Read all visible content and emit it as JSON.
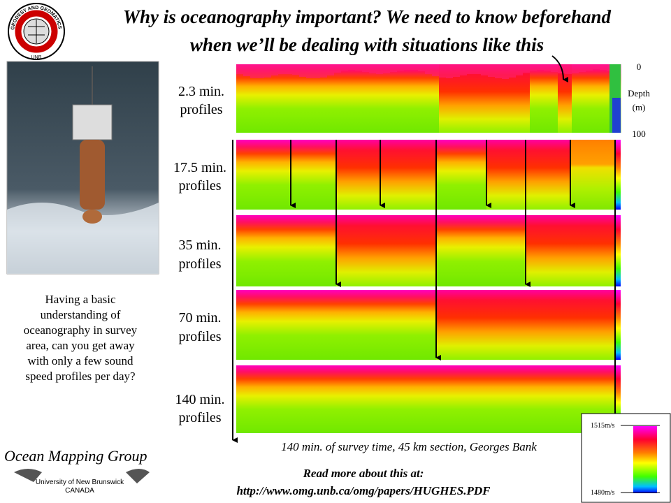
{
  "title": [
    "Why is oceanography important?  We need to know beforehand",
    "when we’ll be dealing with situations like this"
  ],
  "logo": {
    "ring_text": "GEODESY AND GEOMATICS ENGINEERING",
    "unb": "UNB"
  },
  "panels": [
    {
      "label": [
        "2.3 min.",
        "profiles"
      ]
    },
    {
      "label": [
        "17.5 min.",
        "profiles"
      ]
    },
    {
      "label": [
        "35 min.",
        "profiles"
      ]
    },
    {
      "label": [
        "70 min.",
        "profiles"
      ]
    },
    {
      "label": [
        "140 min.",
        "profiles"
      ]
    }
  ],
  "depth_axis": {
    "top": "0",
    "label": [
      "Depth",
      "(m)"
    ],
    "bottom": "100"
  },
  "caption": "140 min. of survey time, 45 km section, Georges Bank",
  "question": [
    "Having a basic",
    "understanding of",
    "oceanography in survey",
    "area, can you get away",
    "with only a few sound",
    "speed profiles per day?"
  ],
  "footer": {
    "read_more": "Read more about this at:",
    "url": "http://www.omg.unb.ca/omg/papers/HUGHES.PDF"
  },
  "brand": {
    "name": "Ocean Mapping Group",
    "university": "University of New Brunswick",
    "country": "CANADA"
  },
  "color_scale": {
    "max": "1515m/s",
    "min": "1480m/s"
  }
}
